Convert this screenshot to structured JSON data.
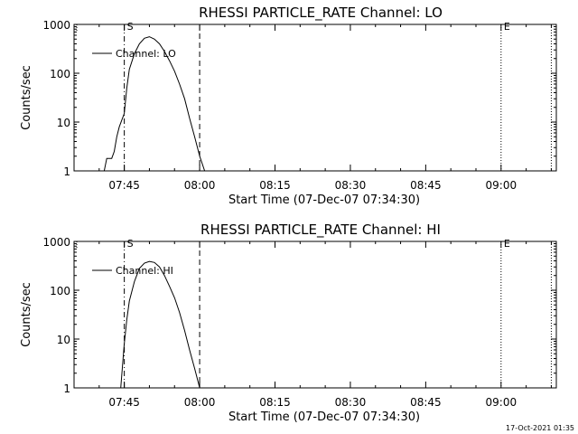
{
  "chart_data": [
    {
      "type": "line",
      "title": "RHESSI PARTICLE_RATE Channel: LO",
      "ylabel": "Counts/sec",
      "xlabel": "Start Time (07-Dec-07 07:34:30)",
      "yscale": "log",
      "ylim": [
        1,
        1000
      ],
      "xlim_minutes": [
        "07:35",
        "09:11"
      ],
      "ytick_labels": [
        "1",
        "10",
        "100",
        "1000"
      ],
      "xtick_labels": [
        "07:45",
        "08:00",
        "08:15",
        "08:30",
        "08:45",
        "09:00"
      ],
      "legend": "Channel: LO",
      "legend_position": "top-left",
      "markers": [
        {
          "label": "S",
          "time": "07:45",
          "style": "dash-dot"
        },
        {
          "label": "",
          "time": "08:00",
          "style": "dashed"
        },
        {
          "label": "E",
          "time": "09:00",
          "style": "dotted"
        },
        {
          "label": "",
          "time": "09:10",
          "style": "dotted"
        }
      ],
      "series": [
        {
          "x": [
            "07:41",
            "07:41.5",
            "07:42.5",
            "07:43",
            "07:43.5",
            "07:44",
            "07:45",
            "07:45.5",
            "07:46",
            "07:47",
            "07:48",
            "07:49",
            "07:50",
            "07:51",
            "07:52",
            "07:53",
            "07:54",
            "07:55",
            "07:56",
            "07:57",
            "07:58",
            "07:59",
            "08:00",
            "08:01"
          ],
          "y": [
            1,
            1.8,
            1.8,
            2.5,
            5,
            8,
            15,
            50,
            120,
            250,
            400,
            520,
            560,
            500,
            400,
            280,
            180,
            110,
            60,
            30,
            12,
            5,
            2,
            1
          ]
        }
      ]
    },
    {
      "type": "line",
      "title": "RHESSI PARTICLE_RATE Channel: HI",
      "ylabel": "Counts/sec",
      "xlabel": "Start Time (07-Dec-07 07:34:30)",
      "yscale": "log",
      "ylim": [
        1,
        1000
      ],
      "xlim_minutes": [
        "07:35",
        "09:11"
      ],
      "ytick_labels": [
        "1",
        "10",
        "100",
        "1000"
      ],
      "xtick_labels": [
        "07:45",
        "08:00",
        "08:15",
        "08:30",
        "08:45",
        "09:00"
      ],
      "legend": "Channel: HI",
      "legend_position": "top-left",
      "markers": [
        {
          "label": "S",
          "time": "07:45",
          "style": "dash-dot"
        },
        {
          "label": "",
          "time": "08:00",
          "style": "dashed"
        },
        {
          "label": "E",
          "time": "09:00",
          "style": "dotted"
        },
        {
          "label": "",
          "time": "09:10",
          "style": "dotted"
        }
      ],
      "series": [
        {
          "x": [
            "07:44.3",
            "07:45",
            "07:45.5",
            "07:46",
            "07:47",
            "07:48",
            "07:49",
            "07:50",
            "07:51",
            "07:52",
            "07:53",
            "07:54",
            "07:55",
            "07:56",
            "07:57",
            "07:58",
            "07:59",
            "08:00"
          ],
          "y": [
            1,
            8,
            25,
            60,
            150,
            280,
            360,
            390,
            370,
            300,
            200,
            120,
            70,
            35,
            15,
            6,
            2.5,
            1
          ]
        }
      ]
    }
  ],
  "footer": {
    "timestamp": "17-Oct-2021 01:35"
  }
}
